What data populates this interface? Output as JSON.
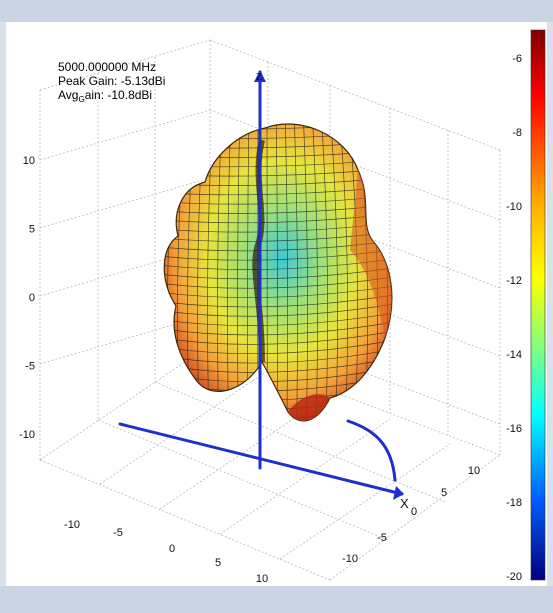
{
  "chart_data": {
    "type": "surface",
    "info": {
      "frequency": "5000.000000 MHz",
      "peak_gain": "Peak Gain: -5.13dBi",
      "avg_gain_prefix": "Avg",
      "avg_gain_sub": "G",
      "avg_gain_suffix": "ain: -10.8dBi"
    },
    "axes": {
      "z_label": "Z",
      "x_label": "X",
      "z_ticks": [
        "10",
        "5",
        "0",
        "-5",
        "-10"
      ],
      "x_ticks": [
        "-10",
        "-5",
        "0",
        "5",
        "10"
      ],
      "y_ticks": [
        "10",
        "5",
        "0",
        "-5",
        "-10"
      ]
    },
    "colorbar": {
      "ticks": [
        "-6",
        "-8",
        "-10",
        "-12",
        "-14",
        "-16",
        "-18",
        "-20"
      ],
      "range": [
        -20,
        -5.13
      ],
      "colormap": "jet"
    },
    "colors": {
      "axis_line": "#1f2ecc",
      "grid": "#b8b8b8",
      "surface_high": "#b81f06",
      "surface_mid": "#e9e33a",
      "surface_low": "#38c4d2"
    }
  }
}
